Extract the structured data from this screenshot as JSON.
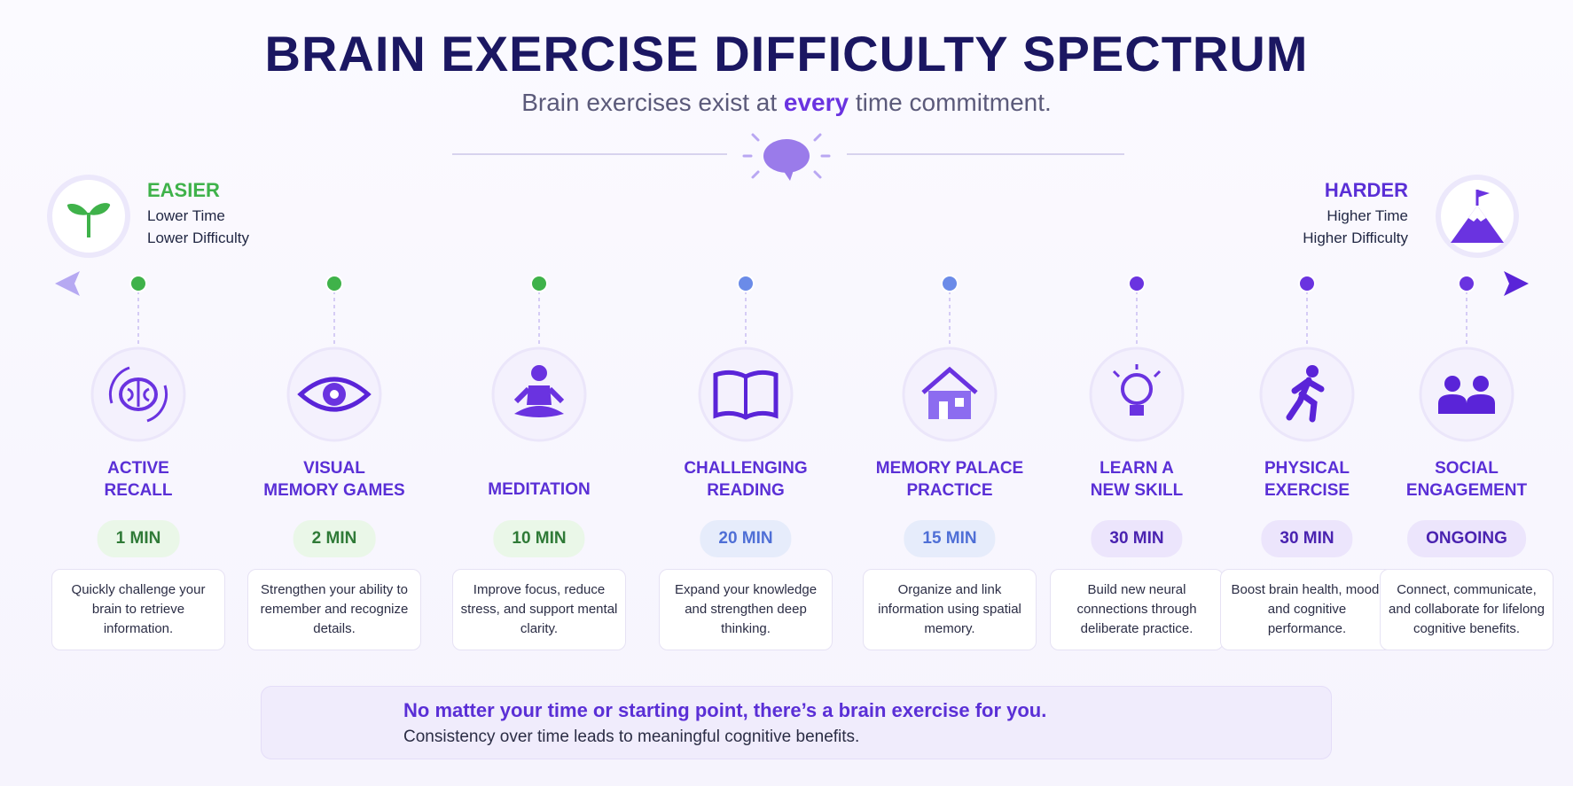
{
  "header": {
    "title": "BRAIN EXERCISE DIFFICULTY SPECTRUM",
    "subtitle": [
      "Brain exercises exist at ",
      "every",
      " time commitment."
    ]
  },
  "easier": {
    "label": "EASIER",
    "lines": [
      "Lower Time",
      "Lower Difficulty"
    ]
  },
  "harder": {
    "label": "HARDER",
    "lines": [
      "Higher Time",
      "Higher Difficulty"
    ]
  },
  "items": [
    {
      "name": [
        "ACTIVE",
        "RECALL"
      ],
      "time": "1 MIN",
      "tone": "green",
      "description": "Quickly challenge your brain to retrieve information."
    },
    {
      "name": [
        "VISUAL",
        "MEMORY GAMES"
      ],
      "time": "2 MIN",
      "tone": "green",
      "description": "Strengthen your ability to remember and recognize details."
    },
    {
      "name": [
        "MEDITATION"
      ],
      "time": "10 MIN",
      "tone": "green",
      "description": "Improve focus, reduce stress, and support mental clarity."
    },
    {
      "name": [
        "CHALLENGING",
        "READING"
      ],
      "time": "20 MIN",
      "tone": "blue",
      "description": "Expand your knowledge and strengthen deep thinking."
    },
    {
      "name": [
        "MEMORY PALACE",
        "PRACTICE"
      ],
      "time": "15 MIN",
      "tone": "blue",
      "description": "Organize and link information using spatial memory."
    },
    {
      "name": [
        "LEARN A",
        "NEW SKILL"
      ],
      "time": "30 MIN",
      "tone": "purple",
      "description": "Build new neural connections through deliberate practice."
    },
    {
      "name": [
        "PHYSICAL",
        "EXERCISE"
      ],
      "time": "30 MIN",
      "tone": "purple",
      "description": "Boost brain health, mood, and cognitive performance."
    },
    {
      "name": [
        "SOCIAL",
        "ENGAGEMENT"
      ],
      "time": "ONGOING",
      "tone": "purple",
      "description": "Connect, communicate, and collaborate for lifelong cognitive benefits."
    }
  ],
  "footer": {
    "headline": "No matter your time or starting point, there’s a brain exercise for you.",
    "text": "Consistency over time leads to meaningful cognitive benefits."
  }
}
